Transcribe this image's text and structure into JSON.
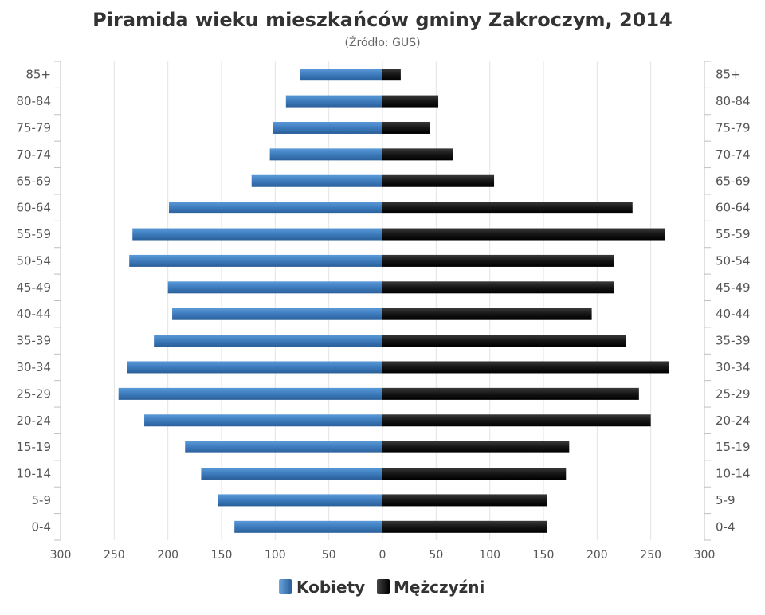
{
  "chart_data": {
    "type": "bar",
    "orientation": "horizontal",
    "title": "Piramida wieku mieszkańców gminy Zakroczym, 2014",
    "subtitle": "(Źródło: GUS)",
    "categories": [
      "85+",
      "80-84",
      "75-79",
      "70-74",
      "65-69",
      "60-64",
      "55-59",
      "50-54",
      "45-49",
      "40-44",
      "35-39",
      "30-34",
      "25-29",
      "20-24",
      "15-19",
      "10-14",
      "5-9",
      "0-4"
    ],
    "series": [
      {
        "name": "Kobiety",
        "color": "#3d7bbd",
        "side": "left",
        "values": [
          77,
          90,
          102,
          105,
          122,
          199,
          233,
          236,
          200,
          196,
          213,
          238,
          246,
          222,
          184,
          169,
          153,
          138
        ]
      },
      {
        "name": "Mężczyźni",
        "color": "#1a1a1a",
        "side": "right",
        "values": [
          17,
          52,
          44,
          66,
          104,
          233,
          263,
          216,
          216,
          195,
          227,
          267,
          239,
          250,
          174,
          171,
          153,
          153
        ]
      }
    ],
    "xlim": [
      -300,
      300
    ],
    "x_ticks": [
      "300",
      "250",
      "200",
      "150",
      "100",
      "50",
      "0",
      "50",
      "100",
      "150",
      "200",
      "250",
      "300"
    ],
    "grid": true,
    "legend_position": "bottom"
  }
}
